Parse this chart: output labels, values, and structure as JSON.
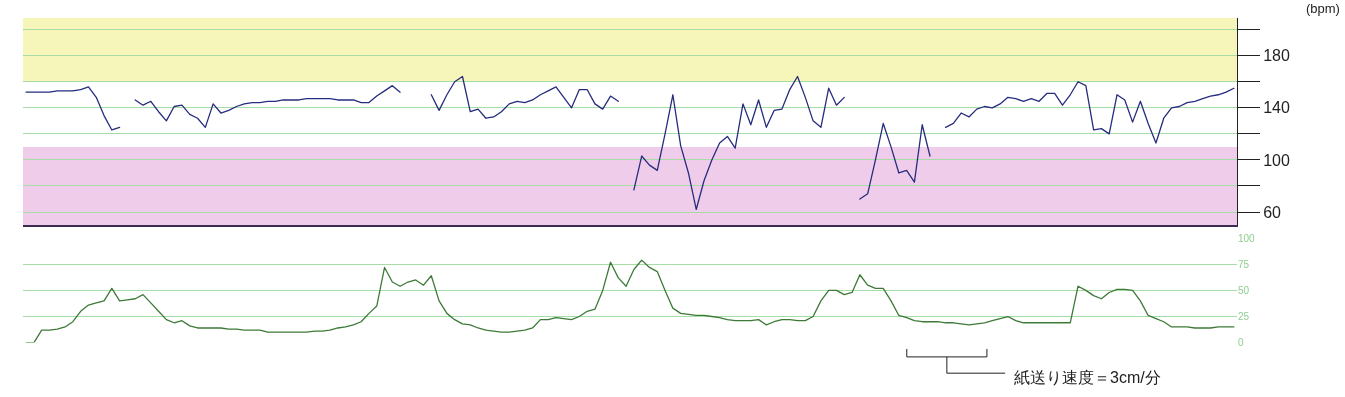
{
  "chart_data": [
    {
      "type": "line",
      "ylabel": "(bpm)",
      "ylim": [
        50,
        209
      ],
      "grid": "y",
      "marker": "none",
      "line_style": "solid",
      "tick_labels": "y",
      "categories": [
        null,
        null,
        null,
        null,
        null,
        null,
        null,
        null,
        null,
        null,
        null,
        null,
        null,
        null,
        null,
        null,
        null,
        null,
        null,
        null,
        null,
        null,
        null,
        null,
        null,
        null,
        null,
        null,
        null,
        null,
        null,
        null,
        null,
        null,
        null,
        null,
        null,
        null,
        null,
        null,
        null,
        null,
        null,
        null,
        null,
        null,
        null,
        null,
        null,
        null,
        null,
        null,
        null,
        null,
        null,
        null,
        null,
        null,
        null,
        null,
        null,
        null,
        null,
        null,
        null,
        null,
        null,
        null,
        null,
        null,
        null,
        null,
        null,
        null,
        null,
        null,
        null,
        null,
        null,
        null,
        null,
        null,
        null,
        null,
        null,
        null,
        null,
        null,
        null,
        null,
        null,
        null,
        null,
        null,
        null,
        null,
        null,
        null,
        null,
        null,
        null,
        null,
        null,
        null,
        null,
        null,
        null,
        null,
        null,
        null,
        null,
        null,
        null,
        null,
        null,
        null,
        null,
        null,
        null,
        null,
        null,
        null,
        null,
        null,
        null,
        null,
        null,
        null,
        null,
        null,
        null,
        null,
        null,
        null,
        null,
        null,
        null,
        null,
        null,
        null,
        null,
        null,
        null,
        null,
        null,
        null,
        null,
        null,
        null,
        null,
        null,
        null,
        null,
        null,
        null,
        null
      ],
      "yticks": [
        {
          "value": 200,
          "label": null
        },
        180,
        {
          "value": 160,
          "label": null
        },
        140,
        {
          "value": 120,
          "label": null
        },
        100,
        {
          "value": 80,
          "label": null
        },
        60
      ],
      "bands": [
        {
          "axis": "y",
          "from": 160,
          "to": 209,
          "color": "#f6f6bb"
        },
        {
          "axis": "y",
          "from": 50,
          "to": 110,
          "color": "#efcdea"
        }
      ],
      "series": [
        {
          "color": "#262c7e",
          "values": [
            152,
            152,
            152,
            152,
            153,
            153,
            153,
            154,
            156,
            148,
            134,
            123,
            125,
            null,
            146,
            142,
            145,
            137,
            130,
            141,
            142,
            135,
            132,
            125,
            143,
            136,
            138,
            141,
            143,
            144,
            144,
            145,
            145,
            146,
            146,
            146,
            147,
            147,
            147,
            147,
            146,
            146,
            146,
            144,
            144,
            149,
            153,
            157,
            152,
            null,
            null,
            null,
            150,
            138,
            150,
            160,
            164,
            137,
            139,
            132,
            133,
            137,
            143,
            145,
            144,
            146,
            150,
            153,
            156,
            148,
            140,
            154,
            154,
            143,
            139,
            149,
            145,
            null,
            77,
            103,
            96,
            92,
            120,
            150,
            111,
            90,
            62,
            84,
            100,
            113,
            118,
            109,
            143,
            127,
            146,
            125,
            138,
            139,
            154,
            164,
            148,
            130,
            125,
            155,
            142,
            148,
            null,
            70,
            74,
            100,
            128,
            110,
            90,
            92,
            83,
            127,
            103,
            null,
            125,
            128,
            136,
            133,
            139,
            141,
            140,
            143,
            148,
            147,
            145,
            147,
            145,
            151,
            151,
            142,
            150,
            160,
            157,
            123,
            124,
            120,
            150,
            146,
            129,
            145,
            128,
            113,
            132,
            140,
            141,
            144,
            145,
            147,
            149,
            150,
            152,
            155
          ]
        }
      ]
    },
    {
      "type": "line",
      "ylim": [
        0,
        100
      ],
      "grid": "y",
      "marker": "none",
      "line_style": "solid",
      "tick_labels": "y",
      "categories": [
        null,
        null,
        null,
        null,
        null,
        null,
        null,
        null,
        null,
        null,
        null,
        null,
        null,
        null,
        null,
        null,
        null,
        null,
        null,
        null,
        null,
        null,
        null,
        null,
        null,
        null,
        null,
        null,
        null,
        null,
        null,
        null,
        null,
        null,
        null,
        null,
        null,
        null,
        null,
        null,
        null,
        null,
        null,
        null,
        null,
        null,
        null,
        null,
        null,
        null,
        null,
        null,
        null,
        null,
        null,
        null,
        null,
        null,
        null,
        null,
        null,
        null,
        null,
        null,
        null,
        null,
        null,
        null,
        null,
        null,
        null,
        null,
        null,
        null,
        null,
        null,
        null,
        null,
        null,
        null,
        null,
        null,
        null,
        null,
        null,
        null,
        null,
        null,
        null,
        null,
        null,
        null,
        null,
        null,
        null,
        null,
        null,
        null,
        null,
        null,
        null,
        null,
        null,
        null,
        null,
        null,
        null,
        null,
        null,
        null,
        null,
        null,
        null,
        null,
        null,
        null,
        null,
        null,
        null,
        null,
        null,
        null,
        null,
        null,
        null,
        null,
        null,
        null,
        null,
        null,
        null,
        null,
        null,
        null,
        null,
        null,
        null,
        null,
        null,
        null,
        null,
        null,
        null,
        null,
        null,
        null,
        null,
        null,
        null,
        null,
        null,
        null,
        null,
        null,
        null,
        null
      ],
      "yticks": [
        0,
        25,
        50,
        75,
        100
      ],
      "annotations": [
        "紙送り速度＝3cm/分"
      ],
      "series": [
        {
          "color": "#3d7a37",
          "values": [
            0,
            0,
            12,
            12,
            13,
            15,
            20,
            30,
            36,
            38,
            40,
            52,
            40,
            41,
            42,
            46,
            38,
            30,
            22,
            19,
            21,
            16,
            14,
            14,
            14,
            14,
            13,
            13,
            12,
            12,
            12,
            10,
            10,
            10,
            10,
            10,
            10,
            11,
            11,
            12,
            14,
            15,
            17,
            20,
            28,
            35,
            72,
            58,
            54,
            58,
            60,
            55,
            64,
            40,
            28,
            22,
            18,
            17,
            14,
            12,
            11,
            10,
            10,
            11,
            12,
            14,
            22,
            22,
            24,
            23,
            22,
            25,
            30,
            32,
            50,
            77,
            62,
            54,
            70,
            79,
            72,
            68,
            50,
            33,
            28,
            27,
            26,
            26,
            25,
            24,
            22,
            21,
            21,
            21,
            22,
            17,
            20,
            22,
            22,
            21,
            21,
            25,
            40,
            50,
            50,
            46,
            48,
            65,
            55,
            52,
            52,
            40,
            26,
            24,
            21,
            20,
            20,
            20,
            19,
            19,
            18,
            17,
            18,
            19,
            21,
            23,
            25,
            21,
            19,
            19,
            19,
            19,
            19,
            19,
            19,
            54,
            50,
            45,
            42,
            48,
            51,
            51,
            50,
            40,
            26,
            23,
            20,
            15,
            15,
            15,
            14,
            14,
            14,
            15,
            15,
            15
          ]
        }
      ]
    }
  ]
}
